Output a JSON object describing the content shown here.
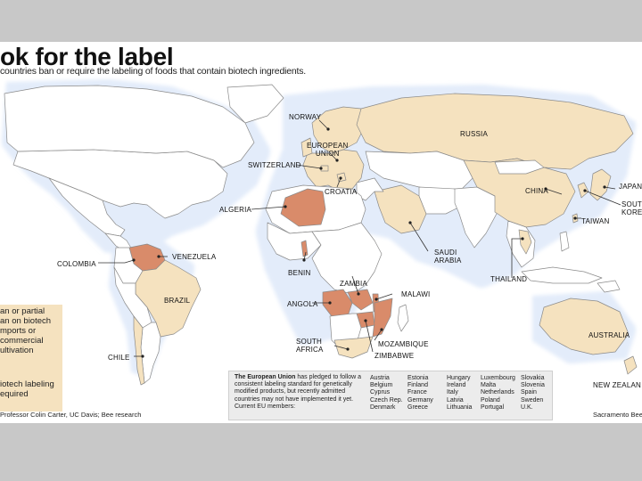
{
  "header": {
    "title": "ok for the label",
    "subtitle": "countries ban or require the labeling of foods that contain biotech ingredients."
  },
  "colors": {
    "ban": "#d98b6a",
    "labeling": "#f5e2bf",
    "other": "#ffffff",
    "border": "#8a8a8a",
    "water_glow": "#e6eefa"
  },
  "map": {
    "labels": {
      "norway": "NORWAY",
      "european_union": "EUROPEAN\nUNION",
      "switzerland": "SWITZERLAND",
      "croatia": "CROATIA",
      "russia": "RUSSIA",
      "algeria": "ALGERIA",
      "china": "CHINA",
      "japan": "JAPAN",
      "south_korea": "SOUTH\nKOREA",
      "taiwan": "TAIWAN",
      "venezuela": "VENEZUELA",
      "colombia": "COLOMBIA",
      "benin": "BENIN",
      "saudi_arabia": "SAUDI\nARABIA",
      "thailand": "THAILAND",
      "zambia": "ZAMBIA",
      "malawi": "MALAWI",
      "angola": "ANGOLA",
      "brazil": "BRAZIL",
      "south_africa": "SOUTH\nAFRICA",
      "mozambique": "MOZAMBIQUE",
      "zimbabwe": "ZIMBABWE",
      "chile": "CHILE",
      "australia": "AUSTRALIA",
      "new_zealand": "NEW ZEALAN"
    }
  },
  "legend": {
    "ban_text": "an or partial\nan on biotech\nmports or\ncommercial\nultivation",
    "labeling_text": "iotech labeling\nequired"
  },
  "eu_box": {
    "note_bold": "The European Union",
    "note_rest": " has pledged to follow a consistent labeling standard for genetically modified products, but recently admitted countries may not have implemented it yet. Current EU members:",
    "columns": [
      [
        "Austria",
        "Belgium",
        "Cyprus",
        "Czech Rep.",
        "Denmark"
      ],
      [
        "Estonia",
        "Finland",
        "France",
        "Germany",
        "Greece"
      ],
      [
        "Hungary",
        "Ireland",
        "Italy",
        "Latvia",
        "Lithuania"
      ],
      [
        "Luxembourg",
        "Malta",
        "Netherlands",
        "Poland",
        "Portugal"
      ],
      [
        "Slovakia",
        "Slovenia",
        "Spain",
        "Sweden",
        "U.K."
      ]
    ]
  },
  "footer": {
    "source": "Professor Colin Carter, UC Davis; Bee research",
    "credit": "Sacramento Bee"
  }
}
